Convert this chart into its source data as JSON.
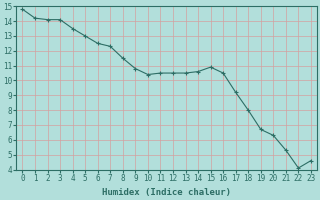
{
  "x": [
    0,
    1,
    2,
    3,
    4,
    5,
    6,
    7,
    8,
    9,
    10,
    11,
    12,
    13,
    14,
    15,
    16,
    17,
    18,
    19,
    20,
    21,
    22,
    23
  ],
  "y": [
    14.8,
    14.2,
    14.1,
    14.1,
    13.5,
    13.0,
    12.5,
    12.3,
    11.5,
    10.8,
    10.4,
    10.5,
    10.5,
    10.5,
    10.6,
    10.9,
    10.5,
    9.2,
    8.0,
    6.7,
    6.3,
    5.3,
    4.1,
    4.6
  ],
  "line_color": "#2d6e65",
  "marker": "+",
  "bg_color": "#b2dfdb",
  "grid_color": "#c8e8e4",
  "xlabel": "Humidex (Indice chaleur)",
  "ylim": [
    4,
    15
  ],
  "xlim": [
    -0.5,
    23.5
  ],
  "yticks": [
    4,
    5,
    6,
    7,
    8,
    9,
    10,
    11,
    12,
    13,
    14,
    15
  ],
  "xticks": [
    0,
    1,
    2,
    3,
    4,
    5,
    6,
    7,
    8,
    9,
    10,
    11,
    12,
    13,
    14,
    15,
    16,
    17,
    18,
    19,
    20,
    21,
    22,
    23
  ],
  "tick_fontsize": 5.5,
  "xlabel_fontsize": 6.5,
  "line_width": 0.8,
  "marker_size": 3
}
